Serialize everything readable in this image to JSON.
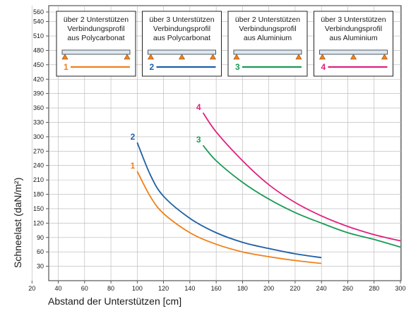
{
  "chart_data": {
    "type": "line",
    "xlabel": "Abstand der Unterstützen  [cm]",
    "ylabel": "Schneelast  (daN/m²)",
    "xlim": [
      0,
      300
    ],
    "ylim": [
      0,
      560
    ],
    "x_ticks": [
      "20",
      "40",
      "60",
      "80",
      "100",
      "120",
      "140",
      "160",
      "180",
      "200",
      "220",
      "240",
      "260",
      "280",
      "300"
    ],
    "y_ticks": [
      "30",
      "60",
      "90",
      "120",
      "150",
      "180",
      "210",
      "240",
      "270",
      "300",
      "330",
      "360",
      "390",
      "420",
      "450",
      "480",
      "510",
      "540",
      "560"
    ],
    "grid": true,
    "series": [
      {
        "name": "1",
        "color": "#f0801a",
        "x": [
          100,
          110,
          120,
          140,
          160,
          180,
          200,
          220,
          240
        ],
        "y": [
          228,
          175,
          140,
          100,
          76,
          60,
          50,
          42,
          36
        ]
      },
      {
        "name": "2",
        "color": "#1f5fa5",
        "x": [
          100,
          110,
          120,
          140,
          160,
          180,
          200,
          220,
          240
        ],
        "y": [
          288,
          220,
          176,
          130,
          100,
          80,
          67,
          56,
          48
        ]
      },
      {
        "name": "3",
        "color": "#1a9a55",
        "x": [
          150,
          160,
          180,
          200,
          220,
          240,
          260,
          280,
          300
        ],
        "y": [
          282,
          250,
          205,
          170,
          142,
          120,
          100,
          86,
          70
        ]
      },
      {
        "name": "4",
        "color": "#e0207f",
        "x": [
          150,
          160,
          180,
          200,
          220,
          240,
          260,
          280,
          300
        ],
        "y": [
          350,
          310,
          250,
          200,
          163,
          135,
          113,
          96,
          83
        ]
      }
    ],
    "legend": [
      {
        "number": "1",
        "lines": [
          "über 2 Unterstützen",
          "Verbindungsprofil",
          "aus Polycarbonat"
        ],
        "color": "#f0801a",
        "supports": 2
      },
      {
        "number": "2",
        "lines": [
          "über 3 Unterstützen",
          "Verbindungsprofil",
          "aus Polycarbonat"
        ],
        "color": "#1f5fa5",
        "supports": 3
      },
      {
        "number": "3",
        "lines": [
          "über 2 Unterstützen",
          "Verbindungsprofil",
          "aus Aluminium"
        ],
        "color": "#1a9a55",
        "supports": 2
      },
      {
        "number": "4",
        "lines": [
          "über 3 Unterstützen",
          "Verbindungsprofil",
          "aus Aluminium"
        ],
        "color": "#e0207f",
        "supports": 3
      }
    ]
  }
}
